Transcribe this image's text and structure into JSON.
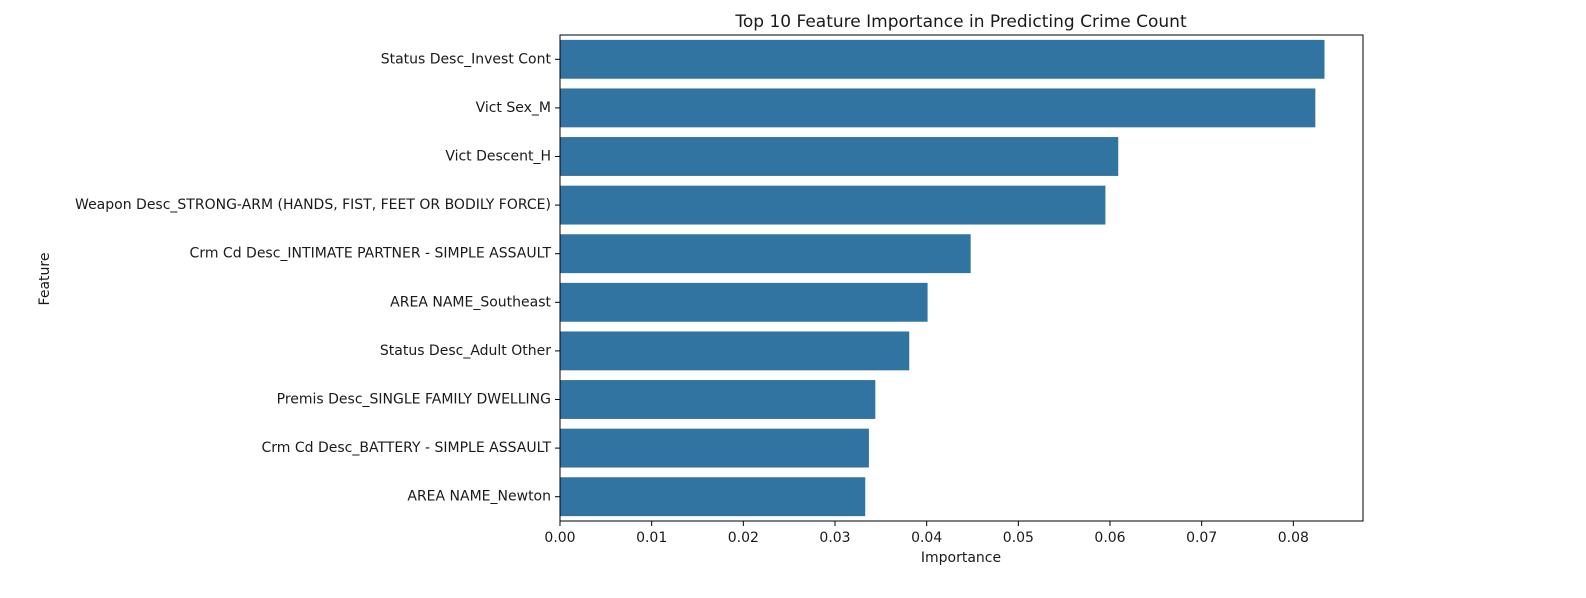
{
  "chart_data": {
    "type": "bar",
    "orientation": "horizontal",
    "title": "Top 10 Feature Importance in Predicting Crime Count",
    "xlabel": "Importance",
    "ylabel": "Feature",
    "categories": [
      "Status Desc_Invest Cont",
      "Vict Sex_M",
      "Vict Descent_H",
      "Weapon Desc_STRONG-ARM (HANDS, FIST, FEET OR BODILY FORCE)",
      "Crm Cd Desc_INTIMATE PARTNER - SIMPLE ASSAULT",
      "AREA NAME_Southeast",
      "Status Desc_Adult Other",
      "Premis Desc_SINGLE FAMILY DWELLING",
      "Crm Cd Desc_BATTERY - SIMPLE ASSAULT",
      "AREA NAME_Newton"
    ],
    "values": [
      0.0834,
      0.0824,
      0.0609,
      0.0595,
      0.0448,
      0.0401,
      0.0381,
      0.0344,
      0.0337,
      0.0333
    ],
    "xlim": [
      0,
      0.0876
    ],
    "xticks": [
      0,
      0.01,
      0.02,
      0.03,
      0.04,
      0.05,
      0.06,
      0.07,
      0.08
    ],
    "xtick_labels": [
      "0.00",
      "0.01",
      "0.02",
      "0.03",
      "0.04",
      "0.05",
      "0.06",
      "0.07",
      "0.08"
    ],
    "grid": false,
    "bar_color": "#3274a1"
  }
}
